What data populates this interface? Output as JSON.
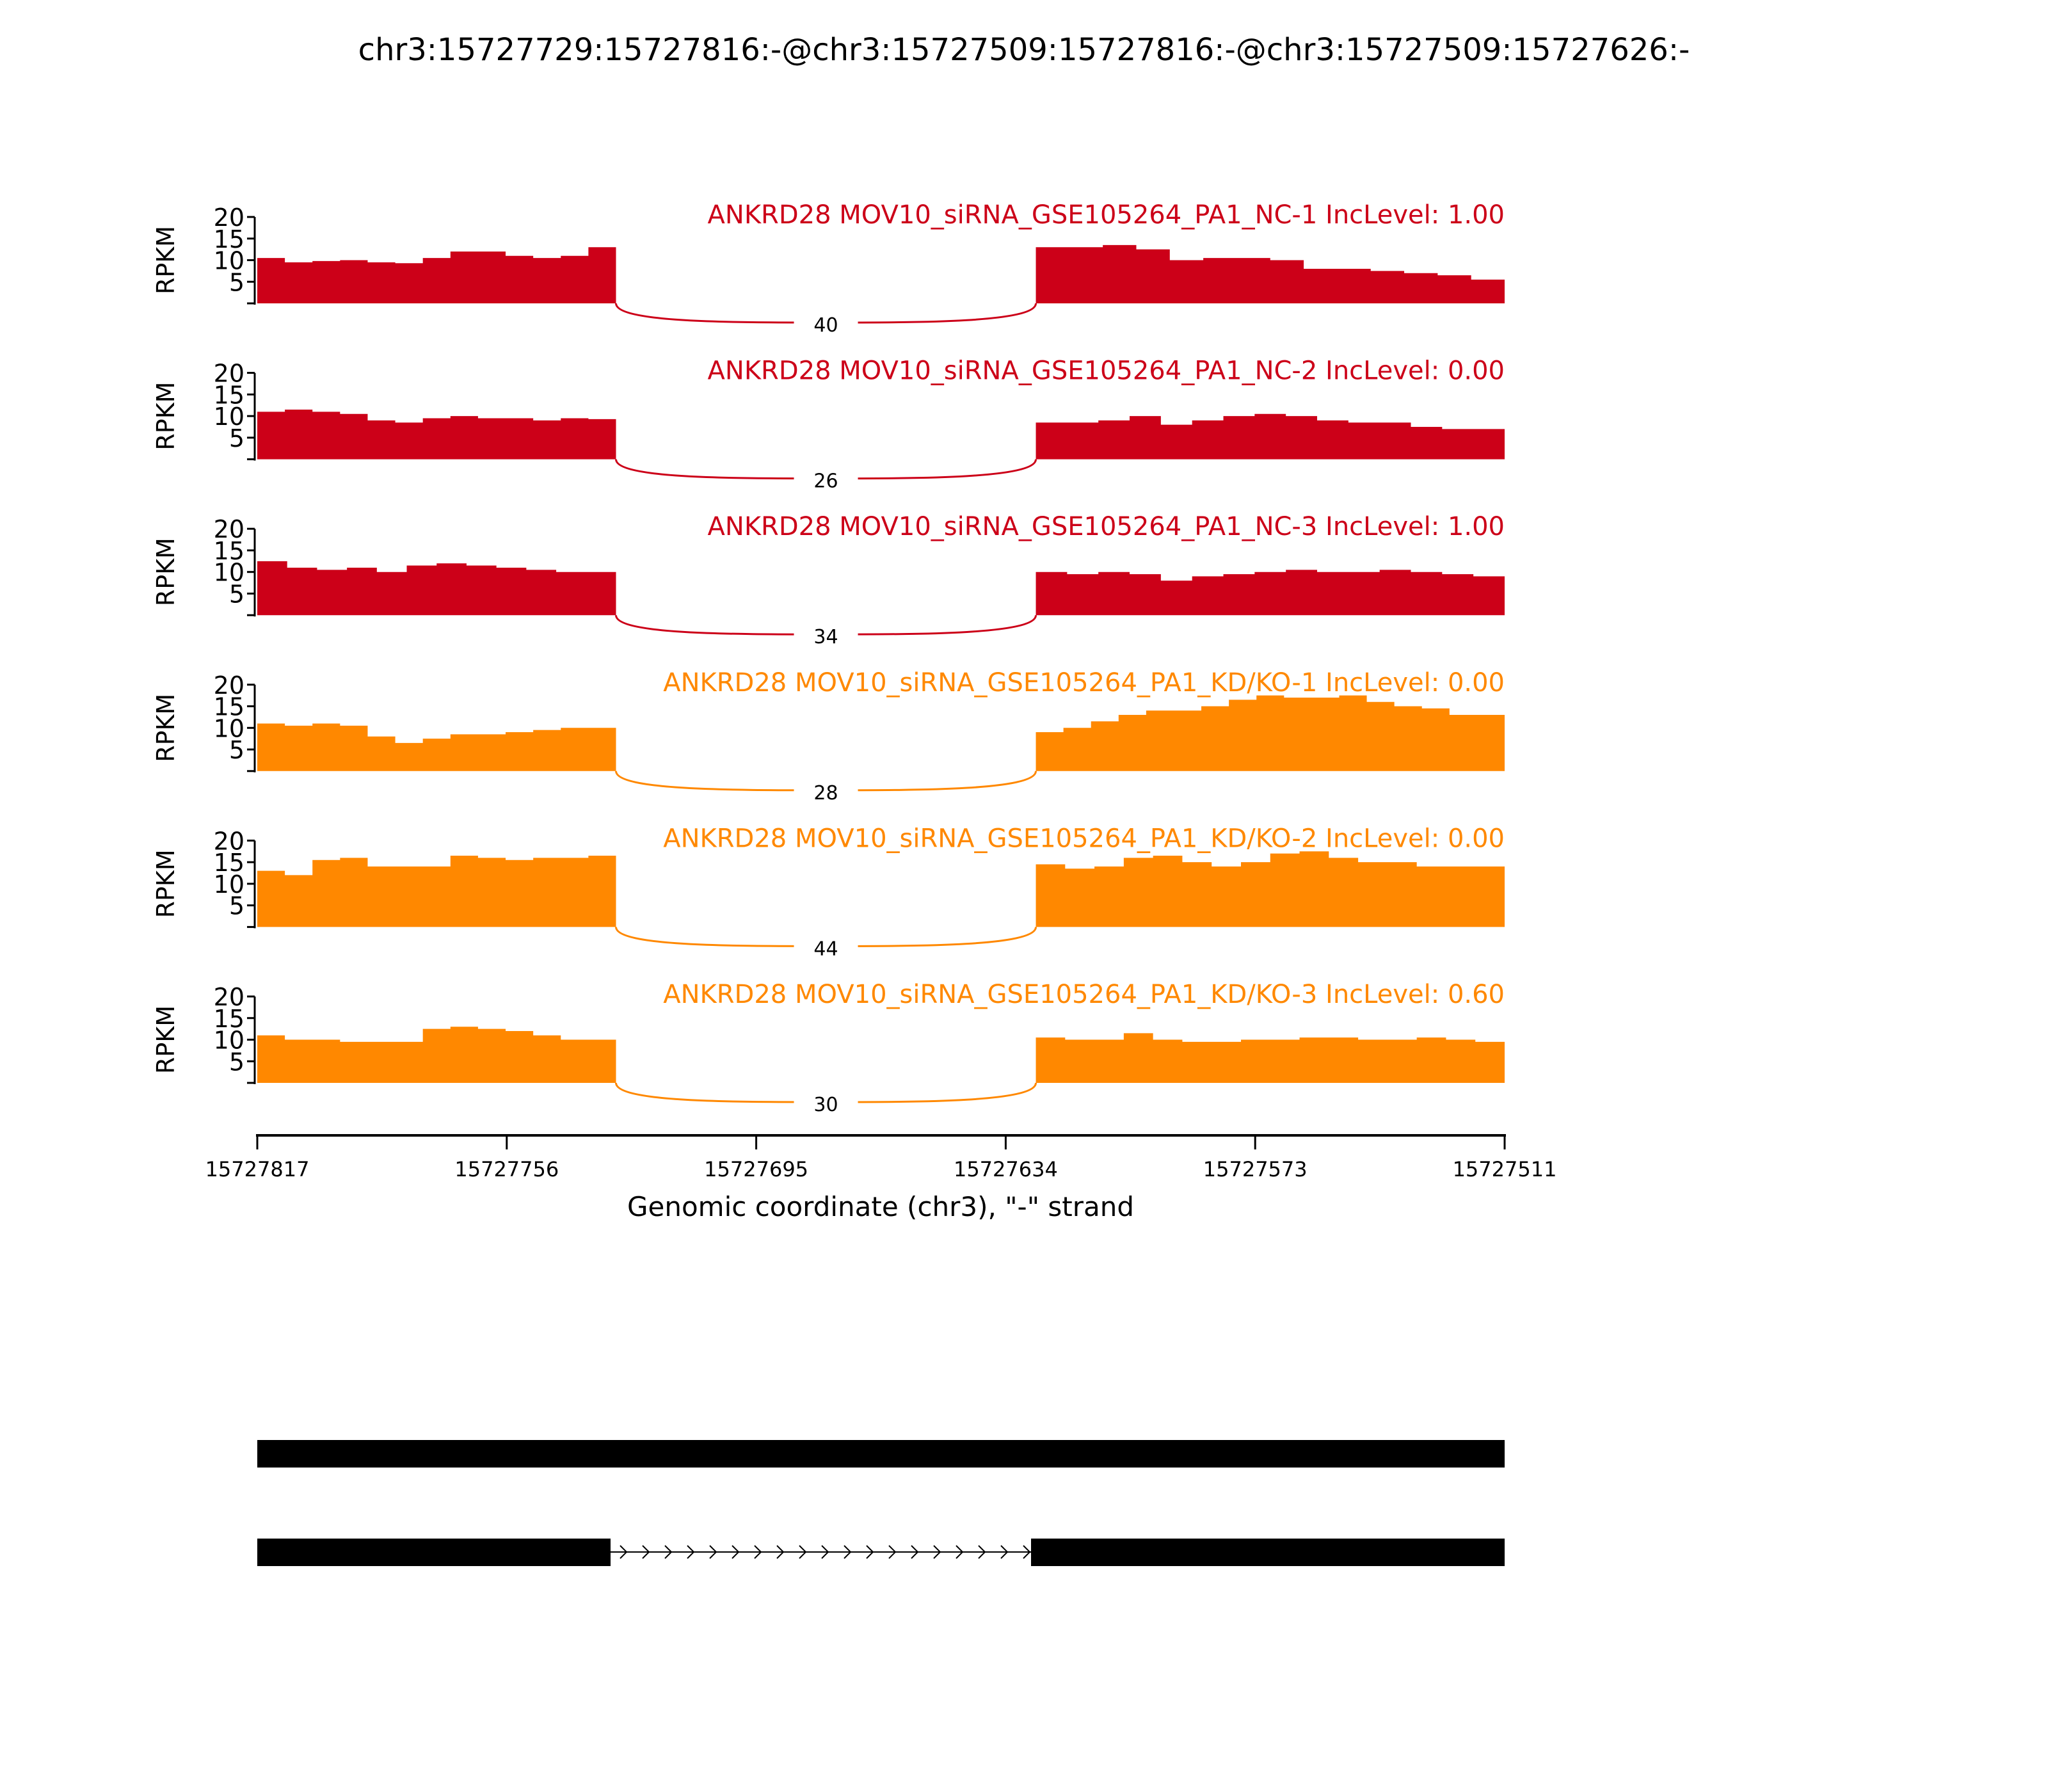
{
  "chart_data": {
    "type": "area",
    "title": "chr3:15727729:15727816:-@chr3:15727509:15727816:-@chr3:15727509:15727626:-",
    "ylabel": "RPKM",
    "xlabel": "Genomic coordinate (chr3), \"-\" strand",
    "ylim": [
      0,
      20
    ],
    "yticks": [
      "5",
      "10",
      "15",
      "20"
    ],
    "xlim": [
      15727817,
      15727511
    ],
    "xticks": [
      "15727817",
      "15727756",
      "15727695",
      "15727634",
      "15727573",
      "15727511"
    ],
    "exons": [
      [
        15727817,
        15727729
      ],
      [
        15727626,
        15727511
      ]
    ],
    "colors": {
      "NC": "#cc0018",
      "KD": "#ff8800"
    },
    "tracks": [
      {
        "label": "ANKRD28 MOV10_siRNA_GSE105264_PA1_NC-1 IncLevel: 1.00",
        "group": "NC",
        "junction_count": "40",
        "exon1": [
          10.5,
          9.5,
          9.8,
          10,
          9.5,
          9.3,
          10.5,
          12,
          12,
          11,
          10.5,
          11,
          13
        ],
        "exon2": [
          13,
          13,
          13.5,
          12.5,
          10,
          10.5,
          10.5,
          10,
          8,
          8,
          7.5,
          7,
          6.5,
          5.5
        ]
      },
      {
        "label": "ANKRD28 MOV10_siRNA_GSE105264_PA1_NC-2 IncLevel: 0.00",
        "group": "NC",
        "junction_count": "26",
        "exon1": [
          11,
          11.5,
          11,
          10.5,
          9,
          8.5,
          9.5,
          10,
          9.5,
          9.5,
          9,
          9.5,
          9.3
        ],
        "exon2": [
          8.5,
          8.5,
          9,
          10,
          8,
          9,
          10,
          10.5,
          10,
          9,
          8.5,
          8.5,
          7.5,
          7,
          7
        ]
      },
      {
        "label": "ANKRD28 MOV10_siRNA_GSE105264_PA1_NC-3 IncLevel: 1.00",
        "group": "NC",
        "junction_count": "34",
        "exon1": [
          12.5,
          11,
          10.5,
          11,
          10,
          11.5,
          12,
          11.5,
          11,
          10.5,
          10,
          10
        ],
        "exon2": [
          10,
          9.5,
          10,
          9.5,
          8,
          9,
          9.5,
          10,
          10.5,
          10,
          10,
          10.5,
          10,
          9.5,
          9
        ]
      },
      {
        "label": "ANKRD28 MOV10_siRNA_GSE105264_PA1_KD/KO-1 IncLevel: 0.00",
        "group": "KD",
        "junction_count": "28",
        "exon1": [
          11,
          10.5,
          11,
          10.5,
          8,
          6.5,
          7.5,
          8.5,
          8.5,
          9,
          9.5,
          10,
          10
        ],
        "exon2": [
          9,
          10,
          11.5,
          13,
          14,
          14,
          15,
          16.5,
          17.5,
          17,
          17,
          17.5,
          16,
          15,
          14.5,
          13,
          13
        ]
      },
      {
        "label": "ANKRD28 MOV10_siRNA_GSE105264_PA1_KD/KO-2 IncLevel: 0.00",
        "group": "KD",
        "junction_count": "44",
        "exon1": [
          13,
          12,
          15.5,
          16,
          14,
          14,
          14,
          16.5,
          16,
          15.5,
          16,
          16,
          16.5
        ],
        "exon2": [
          14.5,
          13.5,
          14,
          16,
          16.5,
          15,
          14,
          15,
          17,
          17.5,
          16,
          15,
          15,
          14,
          14,
          14
        ]
      },
      {
        "label": "ANKRD28 MOV10_siRNA_GSE105264_PA1_KD/KO-3 IncLevel: 0.60",
        "group": "KD",
        "junction_count": "30",
        "exon1": [
          11,
          10,
          10,
          9.5,
          9.5,
          9.5,
          12.5,
          13,
          12.5,
          12,
          11,
          10,
          10
        ],
        "exon2": [
          10.5,
          10,
          10,
          11.5,
          10,
          9.5,
          9.5,
          10,
          10,
          10.5,
          10.5,
          10,
          10,
          10.5,
          10,
          9.5
        ]
      }
    ]
  }
}
